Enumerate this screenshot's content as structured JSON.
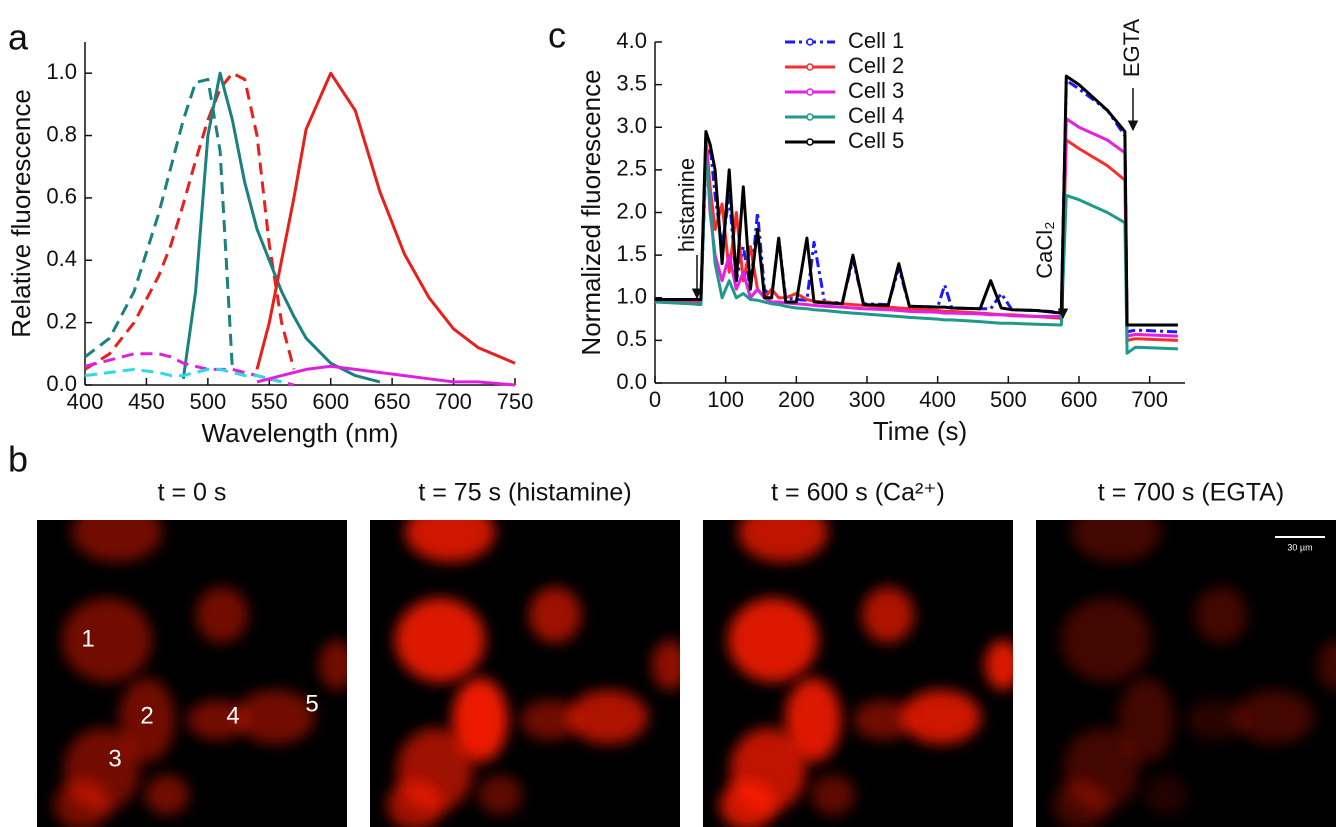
{
  "panel_labels": [
    "a",
    "b",
    "c"
  ],
  "chart_data": [
    {
      "type": "line",
      "xlabel": "Wavelength (nm)",
      "ylabel": "Relative fluorescence",
      "x": [
        400,
        420,
        440,
        460,
        470,
        480,
        490,
        500,
        510,
        520,
        530,
        540,
        550,
        560,
        570,
        580,
        600,
        620,
        640,
        660,
        680,
        700,
        720,
        750
      ],
      "xlim": [
        400,
        750
      ],
      "xticks": [
        400,
        450,
        500,
        550,
        600,
        650,
        700,
        750
      ],
      "ylim": [
        0,
        1.1
      ],
      "yticks": [
        {
          "value": 0,
          "label": "0.0"
        },
        {
          "value": 0.2,
          "label": "0.2"
        },
        {
          "value": 0.4,
          "label": "0.4"
        },
        {
          "value": 0.6,
          "label": "0.6"
        },
        {
          "value": 0.8,
          "label": "0.8"
        },
        {
          "value": 1,
          "label": "1.0"
        }
      ],
      "series": [
        {
          "color": "#1a8080",
          "dash": true,
          "values": [
            0.09,
            0.15,
            0.3,
            0.55,
            0.7,
            0.85,
            0.97,
            0.98,
            0.75,
            0.05,
            null,
            null,
            null,
            null,
            null,
            null,
            null,
            null,
            null,
            null,
            null,
            null,
            null,
            null
          ]
        },
        {
          "color": "#e8201a",
          "dash": true,
          "values": [
            0.05,
            0.1,
            0.2,
            0.35,
            0.45,
            0.58,
            0.72,
            0.85,
            0.95,
            1.0,
            0.98,
            0.8,
            0.45,
            0.2,
            0.05,
            null,
            null,
            null,
            null,
            null,
            null,
            null,
            null,
            null
          ]
        },
        {
          "color": "#1a8080",
          "dash": false,
          "values": [
            null,
            null,
            null,
            null,
            null,
            0.02,
            0.3,
            0.8,
            1.0,
            0.85,
            0.65,
            0.5,
            0.4,
            0.3,
            0.22,
            0.15,
            0.07,
            0.03,
            0.01,
            null,
            null,
            null,
            null,
            null
          ]
        },
        {
          "color": "#e8201a",
          "dash": false,
          "values": [
            null,
            null,
            null,
            null,
            null,
            null,
            null,
            null,
            null,
            null,
            null,
            0.05,
            0.2,
            0.4,
            0.6,
            0.82,
            1.0,
            0.88,
            0.62,
            0.42,
            0.28,
            0.18,
            0.12,
            0.07
          ]
        },
        {
          "color": "#e020e0",
          "dash": true,
          "values": [
            0.06,
            0.08,
            0.1,
            0.1,
            0.09,
            0.07,
            0.06,
            0.05,
            0.05,
            0.05,
            0.04,
            0.03,
            0.02,
            0.01,
            0.0,
            null,
            null,
            null,
            null,
            null,
            null,
            null,
            null,
            null
          ]
        },
        {
          "color": "#30d8e8",
          "dash": true,
          "values": [
            0.03,
            0.04,
            0.05,
            0.04,
            0.03,
            0.03,
            0.04,
            0.05,
            0.05,
            0.04,
            0.03,
            0.03,
            0.02,
            0.01,
            null,
            null,
            null,
            null,
            null,
            null,
            null,
            null,
            null,
            null
          ]
        },
        {
          "color": "#e020e0",
          "dash": false,
          "values": [
            null,
            null,
            null,
            null,
            null,
            null,
            null,
            null,
            null,
            null,
            null,
            0.01,
            0.02,
            0.03,
            0.04,
            0.05,
            0.06,
            0.05,
            0.04,
            0.03,
            0.02,
            0.01,
            0.01,
            0.0
          ]
        }
      ]
    },
    {
      "type": "line",
      "xlabel": "Time (s)",
      "ylabel": "Normalized fluorescence",
      "legend": "top",
      "annotations": [
        "histamine",
        "CaCl₂",
        "EGTA"
      ],
      "x": [
        0,
        50,
        65,
        72,
        78,
        85,
        95,
        105,
        115,
        125,
        135,
        145,
        155,
        165,
        175,
        185,
        200,
        215,
        225,
        240,
        265,
        280,
        295,
        330,
        345,
        360,
        400,
        410,
        420,
        460,
        475,
        490,
        505,
        540,
        575,
        582,
        600,
        640,
        665,
        668,
        680,
        740
      ],
      "xlim": [
        0,
        750
      ],
      "xticks": [
        0,
        100,
        200,
        300,
        400,
        500,
        600,
        700
      ],
      "ylim": [
        0,
        4
      ],
      "yticks": [
        {
          "value": 0,
          "label": "0.0"
        },
        {
          "value": 0.5,
          "label": "0.5"
        },
        {
          "value": 1,
          "label": "1.0"
        },
        {
          "value": 1.5,
          "label": "1.5"
        },
        {
          "value": 2,
          "label": "2.0"
        },
        {
          "value": 2.5,
          "label": "2.5"
        },
        {
          "value": 3,
          "label": "3.0"
        },
        {
          "value": 3.5,
          "label": "3.5"
        },
        {
          "value": 4,
          "label": "4.0"
        }
      ],
      "series": [
        {
          "name": "Cell 1",
          "color": "#1a1aff",
          "dash": true,
          "values": [
            0.97,
            0.95,
            0.95,
            2.6,
            2.8,
            2.2,
            1.6,
            2.2,
            1.2,
            1.6,
            1.1,
            2.0,
            1.1,
            1.0,
            1.7,
            1.0,
            0.98,
            0.97,
            1.65,
            0.95,
            0.94,
            1.45,
            0.93,
            0.92,
            1.35,
            0.9,
            0.89,
            1.15,
            0.88,
            0.87,
            0.87,
            1.05,
            0.86,
            0.85,
            0.83,
            3.55,
            3.45,
            3.2,
            2.9,
            0.6,
            0.62,
            0.6
          ]
        },
        {
          "name": "Cell 2",
          "color": "#ff2a2a",
          "dash": false,
          "values": [
            0.97,
            0.96,
            0.96,
            2.9,
            2.3,
            1.8,
            2.1,
            1.3,
            2.0,
            1.2,
            1.6,
            1.1,
            1.0,
            1.1,
            1.0,
            1.0,
            1.05,
            0.98,
            0.96,
            0.95,
            0.93,
            0.92,
            0.91,
            0.89,
            0.88,
            0.87,
            0.85,
            0.84,
            0.84,
            0.82,
            0.81,
            0.8,
            0.8,
            0.78,
            0.76,
            2.85,
            2.75,
            2.55,
            2.38,
            0.5,
            0.52,
            0.5
          ]
        },
        {
          "name": "Cell 3",
          "color": "#e61ee6",
          "dash": false,
          "values": [
            0.98,
            0.97,
            0.97,
            2.85,
            2.0,
            1.5,
            1.2,
            1.5,
            1.1,
            1.3,
            1.0,
            1.1,
            1.0,
            0.95,
            0.95,
            0.94,
            0.93,
            0.92,
            0.91,
            0.9,
            0.89,
            0.88,
            0.87,
            0.86,
            0.85,
            0.84,
            0.83,
            0.82,
            0.82,
            0.81,
            0.8,
            0.8,
            0.79,
            0.78,
            0.78,
            3.1,
            3.0,
            2.85,
            2.7,
            0.55,
            0.57,
            0.55
          ]
        },
        {
          "name": "Cell 4",
          "color": "#1f9a8a",
          "dash": false,
          "values": [
            0.95,
            0.93,
            0.92,
            2.7,
            2.1,
            1.4,
            1.0,
            1.2,
            1.0,
            1.05,
            0.98,
            0.97,
            0.95,
            0.93,
            0.92,
            0.9,
            0.88,
            0.87,
            0.86,
            0.85,
            0.83,
            0.82,
            0.81,
            0.79,
            0.78,
            0.77,
            0.75,
            0.74,
            0.74,
            0.72,
            0.71,
            0.7,
            0.7,
            0.69,
            0.68,
            2.2,
            2.15,
            2.0,
            1.88,
            0.35,
            0.42,
            0.4
          ]
        },
        {
          "name": "Cell 5",
          "color": "#000000",
          "dash": false,
          "values": [
            0.98,
            0.98,
            0.98,
            2.95,
            2.8,
            2.5,
            1.4,
            2.5,
            1.2,
            2.3,
            1.1,
            1.8,
            1.0,
            1.0,
            1.7,
            0.95,
            0.95,
            1.7,
            0.95,
            0.94,
            0.93,
            1.5,
            0.92,
            0.91,
            1.4,
            0.9,
            0.89,
            0.89,
            0.88,
            0.87,
            1.2,
            0.88,
            0.86,
            0.85,
            0.82,
            3.6,
            3.5,
            3.2,
            2.95,
            0.68,
            0.68,
            0.68
          ]
        }
      ]
    }
  ],
  "images": [
    {
      "title": "t = 0 s"
    },
    {
      "title": "t = 75 s (histamine)"
    },
    {
      "title": "t = 600 s (Ca²⁺)"
    },
    {
      "title": "t = 700 s (EGTA)"
    }
  ],
  "cell_labels": [
    "1",
    "2",
    "3",
    "4",
    "5"
  ],
  "scale_bar": "30 µm"
}
